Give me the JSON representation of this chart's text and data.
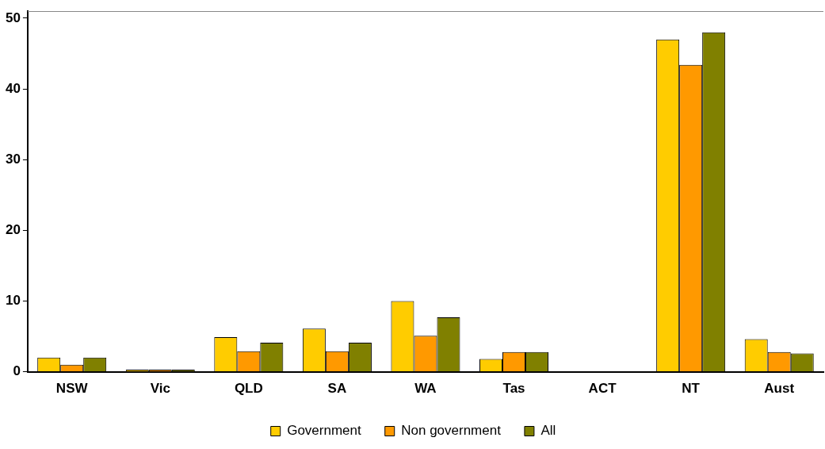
{
  "chart_data": {
    "type": "bar",
    "categories": [
      "NSW",
      "Vic",
      "QLD",
      "SA",
      "WA",
      "Tas",
      "ACT",
      "NT",
      "Aust"
    ],
    "series": [
      {
        "name": "Government",
        "color": "#ffcc00",
        "values": [
          2.0,
          0.3,
          4.9,
          6.1,
          10.0,
          1.8,
          0,
          47,
          4.6
        ]
      },
      {
        "name": "Non government",
        "color": "#ff9900",
        "values": [
          1.0,
          0.3,
          2.9,
          2.9,
          5.1,
          2.8,
          0,
          43.4,
          2.8
        ]
      },
      {
        "name": "All",
        "color": "#808000",
        "values": [
          2.0,
          0.3,
          4.1,
          4.1,
          7.7,
          2.8,
          0,
          48,
          2.6
        ]
      }
    ],
    "ylim": [
      0,
      51
    ],
    "yticks": [
      0,
      10,
      20,
      30,
      40,
      50
    ],
    "grid": false,
    "legend": "bottom"
  }
}
